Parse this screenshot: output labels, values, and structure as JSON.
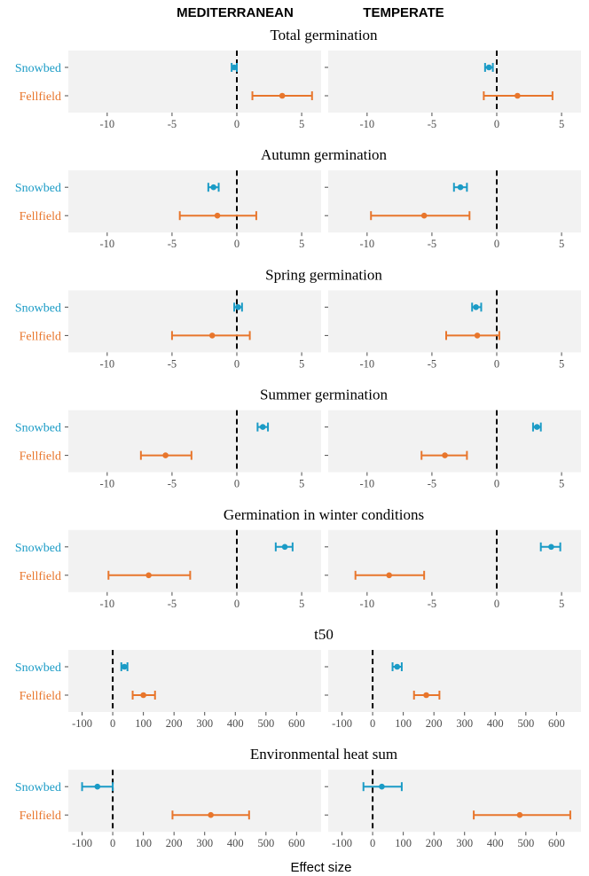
{
  "figure": {
    "columns": [
      "MEDITERRANEAN",
      "TEMPERATE"
    ],
    "xlabel": "Effect size",
    "row_labels": [
      "Snowbed",
      "Fellfield"
    ],
    "colors": {
      "Snowbed": "#1a9bc6",
      "Fellfield": "#e8762c",
      "panel_bg": "#f2f2f2",
      "zero_line": "#000000"
    }
  },
  "chart_data": [
    {
      "type": "scatter",
      "subtype": "forest-plot",
      "title": "Total germination",
      "xlim": [
        -13,
        6.5
      ],
      "xticks": [
        -10,
        -5,
        0,
        5
      ],
      "reference_line": 0,
      "panels": [
        {
          "column": "MEDITERRANEAN",
          "series": [
            {
              "name": "Snowbed",
              "estimate": -0.2,
              "lower": -0.4,
              "upper": 0.0
            },
            {
              "name": "Fellfield",
              "estimate": 3.5,
              "lower": 1.2,
              "upper": 5.8
            }
          ]
        },
        {
          "column": "TEMPERATE",
          "series": [
            {
              "name": "Snowbed",
              "estimate": -0.6,
              "lower": -0.9,
              "upper": -0.3
            },
            {
              "name": "Fellfield",
              "estimate": 1.6,
              "lower": -1.0,
              "upper": 4.3
            }
          ]
        }
      ]
    },
    {
      "type": "scatter",
      "subtype": "forest-plot",
      "title": "Autumn germination",
      "xlim": [
        -13,
        6.5
      ],
      "xticks": [
        -10,
        -5,
        0,
        5
      ],
      "reference_line": 0,
      "panels": [
        {
          "column": "MEDITERRANEAN",
          "series": [
            {
              "name": "Snowbed",
              "estimate": -1.8,
              "lower": -2.2,
              "upper": -1.4
            },
            {
              "name": "Fellfield",
              "estimate": -1.5,
              "lower": -4.4,
              "upper": 1.5
            }
          ]
        },
        {
          "column": "TEMPERATE",
          "series": [
            {
              "name": "Snowbed",
              "estimate": -2.8,
              "lower": -3.3,
              "upper": -2.3
            },
            {
              "name": "Fellfield",
              "estimate": -5.6,
              "lower": -9.7,
              "upper": -2.1
            }
          ]
        }
      ]
    },
    {
      "type": "scatter",
      "subtype": "forest-plot",
      "title": "Spring germination",
      "xlim": [
        -13,
        6.5
      ],
      "xticks": [
        -10,
        -5,
        0,
        5
      ],
      "reference_line": 0,
      "panels": [
        {
          "column": "MEDITERRANEAN",
          "series": [
            {
              "name": "Snowbed",
              "estimate": 0.1,
              "lower": -0.2,
              "upper": 0.4
            },
            {
              "name": "Fellfield",
              "estimate": -1.9,
              "lower": -5.0,
              "upper": 1.0
            }
          ]
        },
        {
          "column": "TEMPERATE",
          "series": [
            {
              "name": "Snowbed",
              "estimate": -1.6,
              "lower": -1.9,
              "upper": -1.2
            },
            {
              "name": "Fellfield",
              "estimate": -1.5,
              "lower": -3.9,
              "upper": 0.2
            }
          ]
        }
      ]
    },
    {
      "type": "scatter",
      "subtype": "forest-plot",
      "title": "Summer germination",
      "xlim": [
        -13,
        6.5
      ],
      "xticks": [
        -10,
        -5,
        0,
        5
      ],
      "reference_line": 0,
      "panels": [
        {
          "column": "MEDITERRANEAN",
          "series": [
            {
              "name": "Snowbed",
              "estimate": 2.0,
              "lower": 1.6,
              "upper": 2.4
            },
            {
              "name": "Fellfield",
              "estimate": -5.5,
              "lower": -7.4,
              "upper": -3.5
            }
          ]
        },
        {
          "column": "TEMPERATE",
          "series": [
            {
              "name": "Snowbed",
              "estimate": 3.1,
              "lower": 2.8,
              "upper": 3.4
            },
            {
              "name": "Fellfield",
              "estimate": -4.0,
              "lower": -5.8,
              "upper": -2.3
            }
          ]
        }
      ]
    },
    {
      "type": "scatter",
      "subtype": "forest-plot",
      "title": "Germination in winter conditions",
      "xlim": [
        -13,
        6.5
      ],
      "xticks": [
        -10,
        -5,
        0,
        5
      ],
      "reference_line": 0,
      "panels": [
        {
          "column": "MEDITERRANEAN",
          "series": [
            {
              "name": "Snowbed",
              "estimate": 3.7,
              "lower": 3.0,
              "upper": 4.3
            },
            {
              "name": "Fellfield",
              "estimate": -6.8,
              "lower": -9.9,
              "upper": -3.6
            }
          ]
        },
        {
          "column": "TEMPERATE",
          "series": [
            {
              "name": "Snowbed",
              "estimate": 4.2,
              "lower": 3.4,
              "upper": 4.9
            },
            {
              "name": "Fellfield",
              "estimate": -8.3,
              "lower": -10.9,
              "upper": -5.6
            }
          ]
        }
      ]
    },
    {
      "type": "scatter",
      "subtype": "forest-plot",
      "title": "t50",
      "xlim": [
        -145,
        680
      ],
      "xticks": [
        -100,
        0,
        100,
        200,
        300,
        400,
        500,
        600
      ],
      "reference_line": 0,
      "panels": [
        {
          "column": "MEDITERRANEAN",
          "series": [
            {
              "name": "Snowbed",
              "estimate": 38,
              "lower": 28,
              "upper": 48
            },
            {
              "name": "Fellfield",
              "estimate": 100,
              "lower": 65,
              "upper": 138
            }
          ]
        },
        {
          "column": "TEMPERATE",
          "series": [
            {
              "name": "Snowbed",
              "estimate": 80,
              "lower": 65,
              "upper": 95
            },
            {
              "name": "Fellfield",
              "estimate": 175,
              "lower": 135,
              "upper": 218
            }
          ]
        }
      ]
    },
    {
      "type": "scatter",
      "subtype": "forest-plot",
      "title": "Environmental heat sum",
      "xlim": [
        -145,
        680
      ],
      "xticks": [
        -100,
        0,
        100,
        200,
        300,
        400,
        500,
        600
      ],
      "reference_line": 0,
      "panels": [
        {
          "column": "MEDITERRANEAN",
          "series": [
            {
              "name": "Snowbed",
              "estimate": -50,
              "lower": -100,
              "upper": 0
            },
            {
              "name": "Fellfield",
              "estimate": 320,
              "lower": 195,
              "upper": 445
            }
          ]
        },
        {
          "column": "TEMPERATE",
          "series": [
            {
              "name": "Snowbed",
              "estimate": 30,
              "lower": -30,
              "upper": 95
            },
            {
              "name": "Fellfield",
              "estimate": 480,
              "lower": 330,
              "upper": 645
            }
          ]
        }
      ]
    }
  ]
}
